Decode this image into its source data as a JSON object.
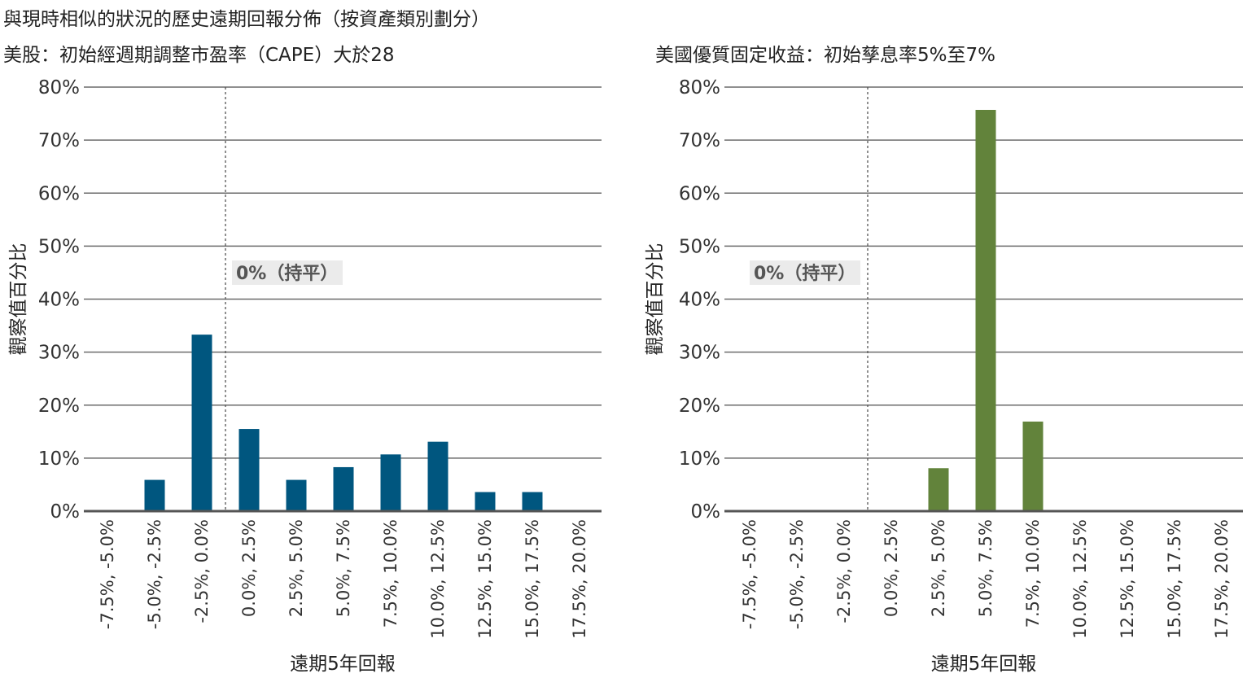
{
  "title": "與現時相似的狀況的歷史遠期回報分佈（按資產類別劃分）",
  "chart_data": [
    {
      "type": "bar",
      "title": "美股：初始經週期調整市盈率（CAPE）大於28",
      "xlabel": "遠期5年回報",
      "ylabel": "觀察值百分比",
      "ylim": [
        0,
        80
      ],
      "yticks": [
        "0%",
        "10%",
        "20%",
        "30%",
        "40%",
        "50%",
        "60%",
        "70%",
        "80%"
      ],
      "categories": [
        "-7.5%, -5.0%",
        "-5.0%, -2.5%",
        "-2.5%, 0.0%",
        "0.0%, 2.5%",
        "2.5%, 5.0%",
        "5.0%, 7.5%",
        "7.5%, 10.0%",
        "10.0%, 12.5%",
        "12.5%, 15.0%",
        "15.0%, 17.5%",
        "17.5%, 20.0%"
      ],
      "values": [
        0,
        5.9,
        33.3,
        15.5,
        5.9,
        8.3,
        10.7,
        13.1,
        3.6,
        3.6,
        0
      ],
      "color": "#00567f",
      "grid": true,
      "annotation": "0%（持平）"
    },
    {
      "type": "bar",
      "title": "美國優質固定收益：初始孳息率5%至7%",
      "xlabel": "遠期5年回報",
      "ylabel": "觀察值百分比",
      "ylim": [
        0,
        80
      ],
      "yticks": [
        "0%",
        "10%",
        "20%",
        "30%",
        "40%",
        "50%",
        "60%",
        "70%",
        "80%"
      ],
      "categories": [
        "-7.5%, -5.0%",
        "-5.0%, -2.5%",
        "-2.5%, 0.0%",
        "0.0%, 2.5%",
        "2.5%, 5.0%",
        "5.0%, 7.5%",
        "7.5%, 10.0%",
        "10.0%, 12.5%",
        "12.5%, 15.0%",
        "15.0%, 17.5%",
        "17.5%, 20.0%"
      ],
      "values": [
        0,
        0,
        0,
        0,
        8.1,
        75.7,
        16.9,
        0,
        0,
        0,
        0
      ],
      "color": "#62833b",
      "grid": true,
      "annotation": "0%（持平）"
    }
  ]
}
